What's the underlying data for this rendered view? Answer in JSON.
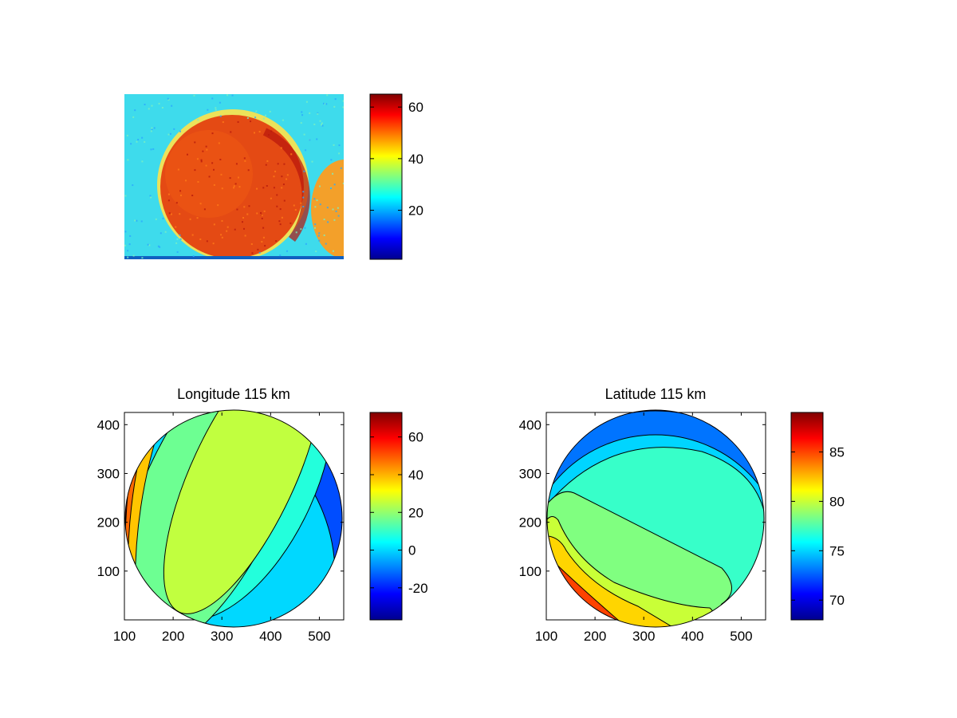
{
  "colormap": [
    "#00008f",
    "#0000ff",
    "#0080ff",
    "#00ffff",
    "#80ff80",
    "#ffff00",
    "#ff8000",
    "#ff0000",
    "#800000"
  ],
  "chart_data": [
    {
      "type": "heatmap",
      "title": "",
      "description_of_content": "",
      "colorbar": {
        "range": [
          1,
          65
        ],
        "ticks": [
          20,
          40,
          60
        ]
      },
      "background_value": 28,
      "disk_value": 58,
      "secondary_disk_value": 56
    },
    {
      "type": "heatmap",
      "title": "Longitude 115 km",
      "xlabel": "",
      "ylabel": "",
      "xlim": [
        100,
        550
      ],
      "ylim": [
        0,
        425
      ],
      "xticks": [
        100,
        200,
        300,
        400,
        500
      ],
      "yticks": [
        100,
        200,
        300,
        400
      ],
      "colorbar": {
        "range": [
          -37,
          73
        ],
        "ticks": [
          -20,
          0,
          20,
          40,
          60
        ]
      },
      "contour_levels": [
        5,
        20,
        30,
        40,
        50,
        60,
        70
      ],
      "regions": [
        {
          "name": "",
          "value": -15
        },
        {
          "name": "",
          "value": 0
        },
        {
          "name": "",
          "value": 8
        },
        {
          "name": "",
          "value": 16
        },
        {
          "name": "",
          "value": 25
        },
        {
          "name": "",
          "value": 38
        },
        {
          "name": "",
          "value": 48
        },
        {
          "name": "",
          "value": 60
        }
      ]
    },
    {
      "type": "heatmap",
      "title": "Latitude 115 km",
      "xlabel": "",
      "ylabel": "",
      "xlim": [
        100,
        550
      ],
      "ylim": [
        0,
        425
      ],
      "xticks": [
        100,
        200,
        300,
        400,
        500
      ],
      "yticks": [
        100,
        200,
        300,
        400
      ],
      "colorbar": {
        "range": [
          68,
          89
        ],
        "ticks": [
          70,
          75,
          80,
          85
        ]
      },
      "contour_levels": [
        72,
        74,
        76,
        77.5,
        79,
        80,
        81,
        82,
        83
      ],
      "regions": [
        {
          "name": "",
          "value": 70
        },
        {
          "name": "",
          "value": 73
        },
        {
          "name": "",
          "value": 75
        },
        {
          "name": "",
          "value": 77
        },
        {
          "name": "",
          "value": 78.5
        },
        {
          "name": "",
          "value": 80
        },
        {
          "name": "",
          "value": 82
        },
        {
          "name": "",
          "value": 85
        }
      ]
    }
  ]
}
